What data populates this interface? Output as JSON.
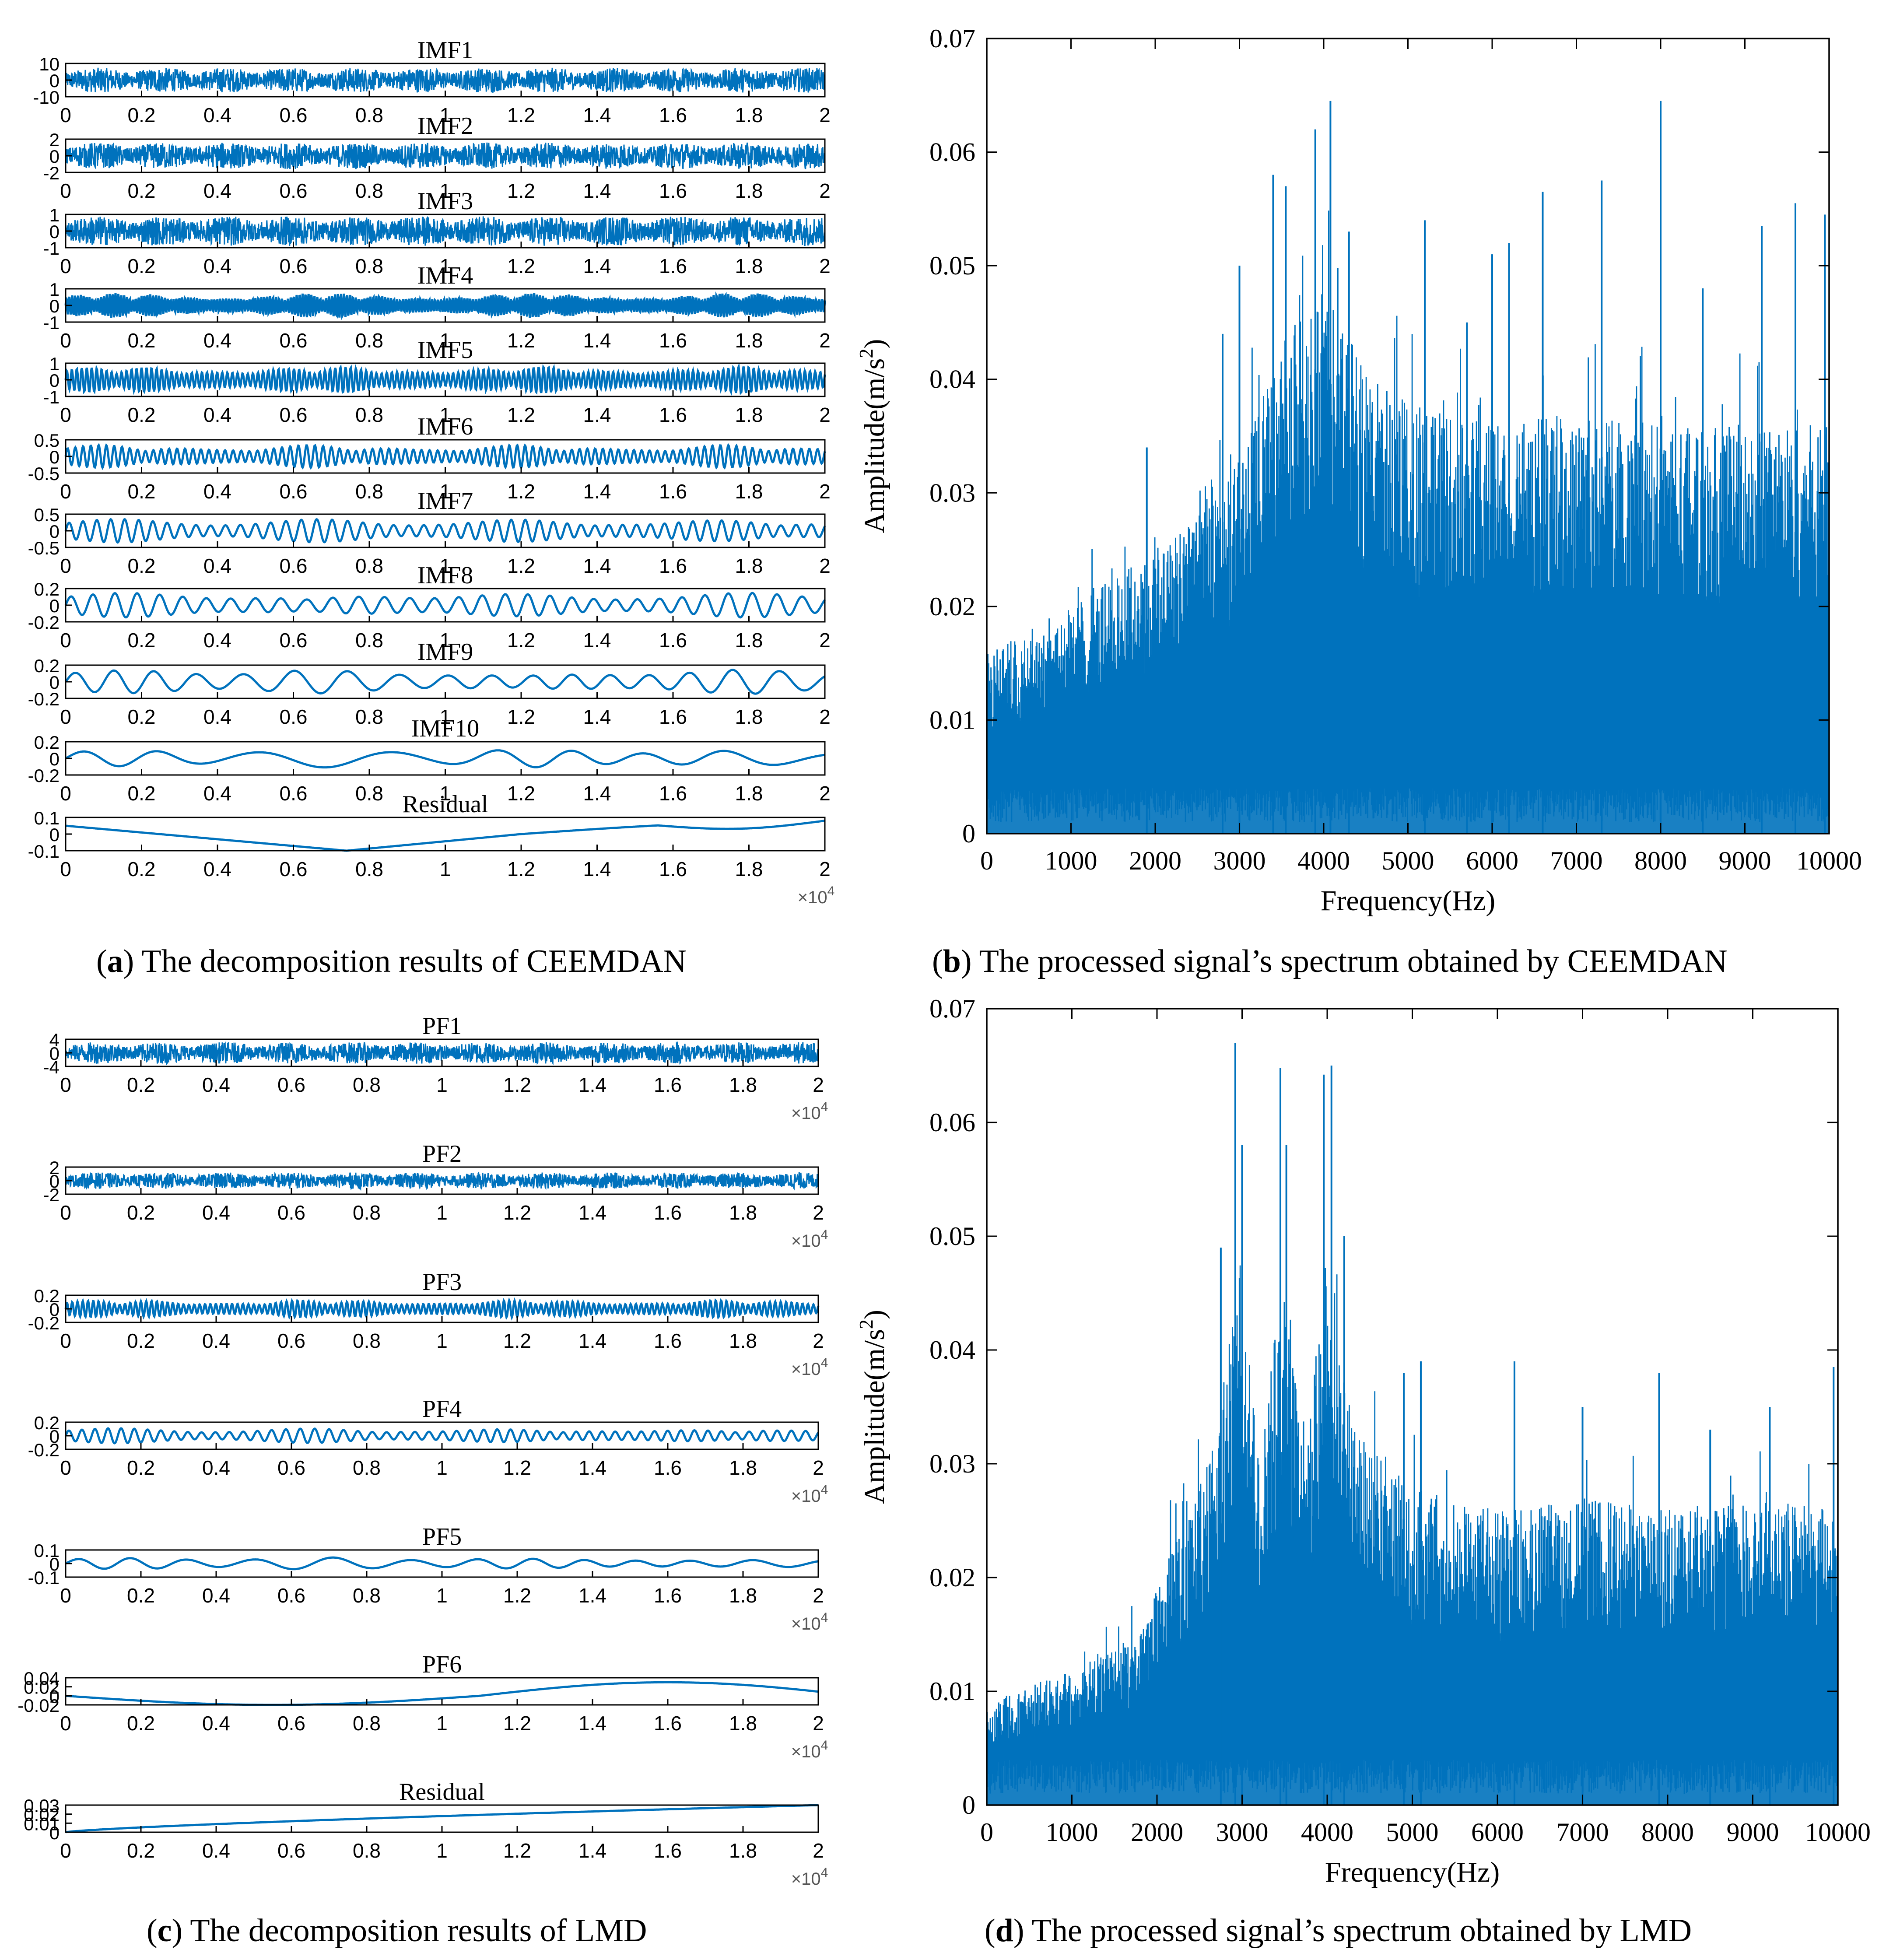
{
  "colors": {
    "signal": "#0072BD",
    "axis": "#000000",
    "background": "#ffffff"
  },
  "captions": {
    "a": {
      "letter": "a",
      "text": " The decomposition results of CEEMDAN"
    },
    "b": {
      "letter": "b",
      "text": " The processed signal’s spectrum obtained by CEEMDAN"
    },
    "c": {
      "letter": "c",
      "text": " The decomposition results of LMD"
    },
    "d": {
      "letter": "d",
      "text": " The processed signal’s spectrum obtained by LMD"
    }
  },
  "chart_data": [
    {
      "panel": "a",
      "type": "line",
      "x_ticks": [
        "0",
        "0.2",
        "0.4",
        "0.6",
        "0.8",
        "1",
        "1.2",
        "1.4",
        "1.6",
        "1.8",
        "2"
      ],
      "x_range": [
        0,
        2
      ],
      "x_exponent_base": "×10",
      "x_exponent": "4",
      "subplots": [
        {
          "title": "IMF1",
          "ylim": [
            -10,
            10
          ],
          "yticks": [
            "10",
            "0",
            "-10"
          ],
          "amp": 0.75,
          "style": "noise",
          "freq": 0
        },
        {
          "title": "IMF2",
          "ylim": [
            -2,
            2
          ],
          "yticks": [
            "2",
            "0",
            "-2"
          ],
          "amp": 0.8,
          "style": "noise",
          "freq": 0
        },
        {
          "title": "IMF3",
          "ylim": [
            -1,
            1
          ],
          "yticks": [
            "1",
            "0",
            "-1"
          ],
          "amp": 0.9,
          "style": "noise",
          "freq": 0
        },
        {
          "title": "IMF4",
          "ylim": [
            -1,
            1
          ],
          "yticks": [
            "1",
            "0",
            "-1"
          ],
          "amp": 0.75,
          "style": "mod",
          "freq": 260
        },
        {
          "title": "IMF5",
          "ylim": [
            -1,
            1
          ],
          "yticks": [
            "1",
            "0",
            "-1"
          ],
          "amp": 0.8,
          "style": "mod",
          "freq": 150
        },
        {
          "title": "IMF6",
          "ylim": [
            -0.5,
            0.5
          ],
          "yticks": [
            "0.5",
            "0",
            "-0.5"
          ],
          "amp": 0.7,
          "style": "mod",
          "freq": 95
        },
        {
          "title": "IMF7",
          "ylim": [
            -0.5,
            0.5
          ],
          "yticks": [
            "0.5",
            "0",
            "-0.5"
          ],
          "amp": 0.7,
          "style": "mod",
          "freq": 52
        },
        {
          "title": "IMF8",
          "ylim": [
            -0.2,
            0.2
          ],
          "yticks": [
            "0.2",
            "0",
            "-0.2"
          ],
          "amp": 0.75,
          "style": "mod",
          "freq": 32
        },
        {
          "title": "IMF9",
          "ylim": [
            -0.2,
            0.2
          ],
          "yticks": [
            "0.2",
            "0",
            "-0.2"
          ],
          "amp": 0.75,
          "style": "mod",
          "freq": 17
        },
        {
          "title": "IMF10",
          "ylim": [
            -0.2,
            0.2
          ],
          "yticks": [
            "0.2",
            "0",
            "-0.2"
          ],
          "amp": 0.55,
          "style": "mod",
          "freq": 8
        },
        {
          "title": "Residual",
          "ylim": [
            -0.1,
            0.1
          ],
          "yticks": [
            "0.1",
            "0",
            "-0.1"
          ],
          "amp": 0,
          "style": "residual_a",
          "freq": 0
        }
      ],
      "show_exponent_on": "last"
    },
    {
      "panel": "b",
      "type": "bar",
      "title": "",
      "xlabel": "Frequency(Hz)",
      "ylabel": "Amplitude(m/s²)",
      "ylabel_base": "Amplitude(m/s",
      "ylabel_sup": "2",
      "ylabel_close": ")",
      "xlim": [
        0,
        10000
      ],
      "ylim": [
        0,
        0.07
      ],
      "x_ticks": [
        "0",
        "1000",
        "2000",
        "3000",
        "4000",
        "5000",
        "6000",
        "7000",
        "8000",
        "9000",
        "10000"
      ],
      "y_ticks": [
        "0",
        "0.01",
        "0.02",
        "0.03",
        "0.04",
        "0.05",
        "0.06",
        "0.07"
      ],
      "envelope": [
        [
          0,
          0.016
        ],
        [
          1000,
          0.02
        ],
        [
          2000,
          0.025
        ],
        [
          2600,
          0.031
        ],
        [
          3000,
          0.033
        ],
        [
          3500,
          0.043
        ],
        [
          4000,
          0.048
        ],
        [
          4200,
          0.045
        ],
        [
          4600,
          0.04
        ],
        [
          5000,
          0.038
        ],
        [
          6000,
          0.036
        ],
        [
          7000,
          0.037
        ],
        [
          8000,
          0.036
        ],
        [
          9000,
          0.036
        ],
        [
          10000,
          0.036
        ]
      ],
      "peaks": [
        [
          1900,
          0.034
        ],
        [
          2800,
          0.044
        ],
        [
          3000,
          0.05
        ],
        [
          3400,
          0.058
        ],
        [
          3550,
          0.057
        ],
        [
          3900,
          0.062
        ],
        [
          4080,
          0.0645
        ],
        [
          4300,
          0.053
        ],
        [
          5200,
          0.054
        ],
        [
          5700,
          0.045
        ],
        [
          6000,
          0.051
        ],
        [
          6200,
          0.052
        ],
        [
          6600,
          0.0565
        ],
        [
          7300,
          0.0575
        ],
        [
          8000,
          0.0645
        ],
        [
          8500,
          0.048
        ],
        [
          9200,
          0.0535
        ],
        [
          9600,
          0.0555
        ],
        [
          9950,
          0.0545
        ]
      ]
    },
    {
      "panel": "c",
      "type": "line",
      "x_ticks": [
        "0",
        "0.2",
        "0.4",
        "0.6",
        "0.8",
        "1",
        "1.2",
        "1.4",
        "1.6",
        "1.8",
        "2"
      ],
      "x_range": [
        0,
        2
      ],
      "x_exponent_base": "×10",
      "x_exponent": "4",
      "subplots": [
        {
          "title": "PF1",
          "ylim": [
            -4,
            4
          ],
          "yticks": [
            "4",
            "0",
            "-4"
          ],
          "amp": 0.8,
          "style": "noise",
          "freq": 0
        },
        {
          "title": "PF2",
          "ylim": [
            -2,
            2
          ],
          "yticks": [
            "2",
            "0",
            "-2"
          ],
          "amp": 0.6,
          "style": "noise",
          "freq": 0
        },
        {
          "title": "PF3",
          "ylim": [
            -0.2,
            0.2
          ],
          "yticks": [
            "0.2",
            "0",
            "-0.2"
          ],
          "amp": 0.65,
          "style": "mod",
          "freq": 140
        },
        {
          "title": "PF4",
          "ylim": [
            -0.2,
            0.2
          ],
          "yticks": [
            "0.2",
            "0",
            "-0.2"
          ],
          "amp": 0.55,
          "style": "mod",
          "freq": 55
        },
        {
          "title": "PF5",
          "ylim": [
            -0.1,
            0.1
          ],
          "yticks": [
            "0.1",
            "0",
            "-0.1"
          ],
          "amp": 0.45,
          "style": "mod",
          "freq": 12
        },
        {
          "title": "PF6",
          "ylim": [
            -0.02,
            0.04
          ],
          "yticks": [
            "0.04",
            "0.02",
            "0",
            "-0.02"
          ],
          "amp": 0,
          "style": "residual_pf6",
          "freq": 0
        },
        {
          "title": "Residual",
          "ylim": [
            0,
            0.03
          ],
          "yticks": [
            "0.03",
            "0.02",
            "0.01",
            "0"
          ],
          "amp": 0,
          "style": "residual_c",
          "freq": 0
        }
      ],
      "show_exponent_on": "all"
    },
    {
      "panel": "d",
      "type": "bar",
      "title": "",
      "xlabel": "Frequency(Hz)",
      "ylabel": "Amplitude(m/s²)",
      "ylabel_base": "Amplitude(m/s",
      "ylabel_sup": "2",
      "ylabel_close": ")",
      "xlim": [
        0,
        10000
      ],
      "ylim": [
        0,
        0.07
      ],
      "x_ticks": [
        "0",
        "1000",
        "2000",
        "3000",
        "4000",
        "5000",
        "6000",
        "7000",
        "8000",
        "9000",
        "10000"
      ],
      "y_ticks": [
        "0",
        "0.01",
        "0.02",
        "0.03",
        "0.04",
        "0.05",
        "0.06",
        "0.07"
      ],
      "envelope": [
        [
          0,
          0.009
        ],
        [
          1000,
          0.012
        ],
        [
          1800,
          0.015
        ],
        [
          2200,
          0.024
        ],
        [
          2700,
          0.032
        ],
        [
          2950,
          0.05
        ],
        [
          3200,
          0.03
        ],
        [
          3500,
          0.048
        ],
        [
          3750,
          0.03
        ],
        [
          4000,
          0.05
        ],
        [
          4300,
          0.033
        ],
        [
          5000,
          0.028
        ],
        [
          6000,
          0.026
        ],
        [
          7000,
          0.027
        ],
        [
          8000,
          0.026
        ],
        [
          9000,
          0.027
        ],
        [
          10000,
          0.026
        ]
      ],
      "peaks": [
        [
          2750,
          0.049
        ],
        [
          2920,
          0.067
        ],
        [
          3000,
          0.058
        ],
        [
          3450,
          0.0648
        ],
        [
          3520,
          0.058
        ],
        [
          3960,
          0.0642
        ],
        [
          4050,
          0.065
        ],
        [
          4200,
          0.05
        ],
        [
          4900,
          0.038
        ],
        [
          5100,
          0.039
        ],
        [
          6200,
          0.039
        ],
        [
          7000,
          0.035
        ],
        [
          7900,
          0.038
        ],
        [
          8500,
          0.033
        ],
        [
          9200,
          0.035
        ],
        [
          9950,
          0.0385
        ]
      ]
    }
  ]
}
